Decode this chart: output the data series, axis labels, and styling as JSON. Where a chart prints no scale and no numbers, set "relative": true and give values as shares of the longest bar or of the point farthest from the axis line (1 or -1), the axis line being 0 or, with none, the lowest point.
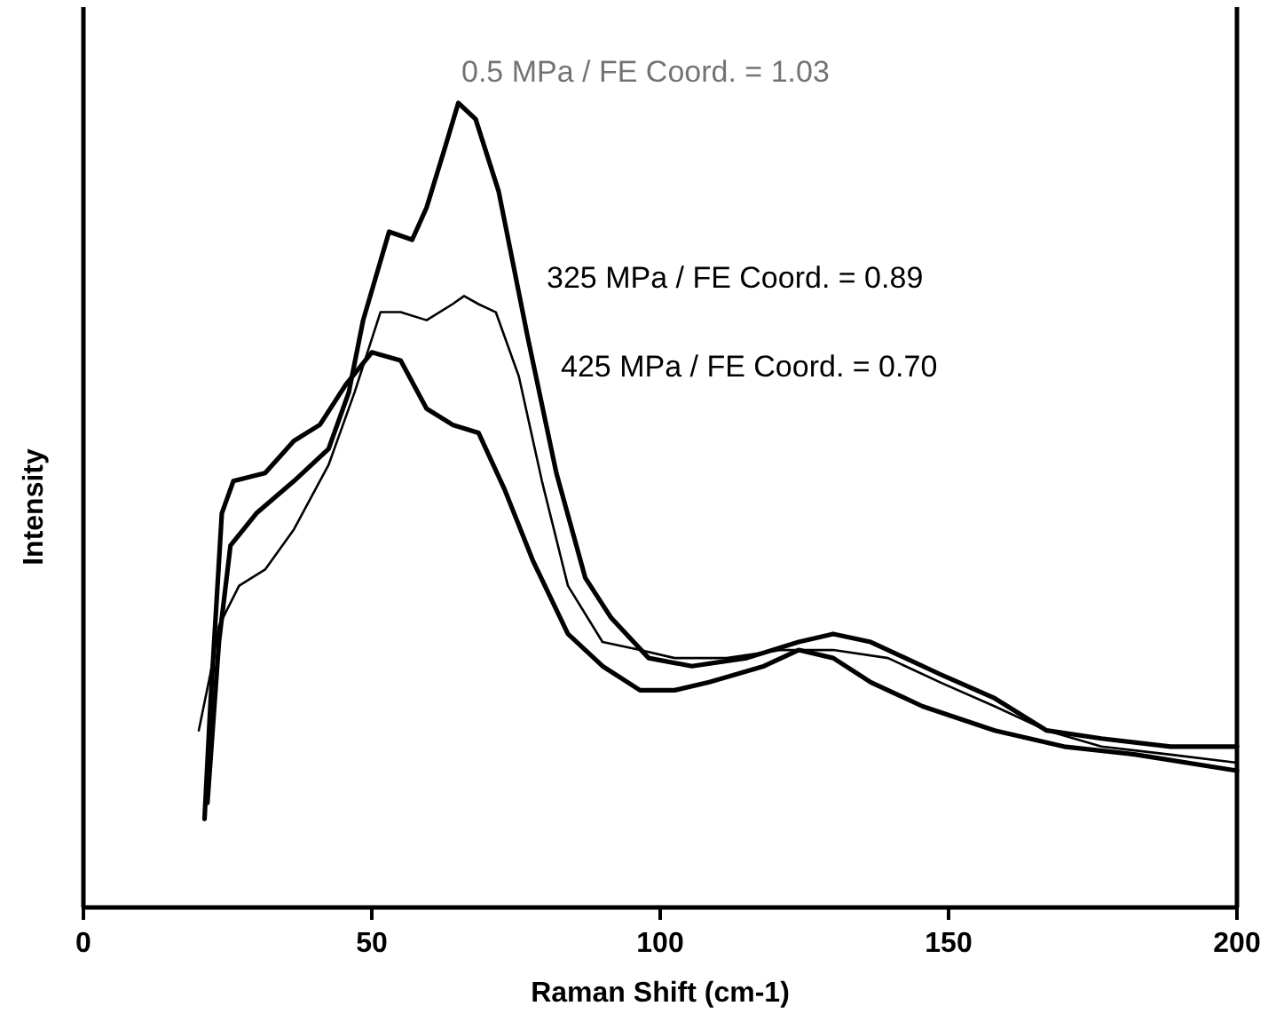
{
  "chart_data": {
    "type": "line",
    "relative": true,
    "xlabel": "Raman Shift (cm-1)",
    "ylabel": "Intensity",
    "xlim": [
      0,
      200
    ],
    "xticks": [
      0,
      50,
      100,
      150,
      200
    ],
    "grid": false,
    "marker": "none",
    "line_style": "solid",
    "annotations": [
      "0.5 MPa / FE Coord. = 1.03",
      "325 MPa / FE Coord. = 0.89",
      "425 MPa / FE Coord. = 0.70"
    ],
    "series": [
      {
        "color": "#000000",
        "x": [
          21.5,
          23.5,
          25.5,
          30,
          36.5,
          42.5,
          46,
          48.5,
          53,
          57,
          59.5,
          62.5,
          65,
          68,
          72,
          77,
          82,
          87,
          91.5,
          98,
          105.5,
          115,
          124,
          130,
          136.5,
          142.5,
          148.5,
          158,
          167,
          176.5,
          188.5,
          200
        ],
        "values": [
          0.13,
          0.33,
          0.45,
          0.49,
          0.53,
          0.57,
          0.64,
          0.73,
          0.84,
          0.83,
          0.87,
          0.94,
          1.0,
          0.98,
          0.89,
          0.71,
          0.54,
          0.41,
          0.36,
          0.31,
          0.3,
          0.31,
          0.33,
          0.34,
          0.33,
          0.31,
          0.29,
          0.26,
          0.22,
          0.21,
          0.2,
          0.2
        ]
      },
      {
        "color": "#000000",
        "x": [
          20,
          22,
          23.5,
          27,
          31.5,
          36.5,
          42.5,
          47,
          51.5,
          55,
          59.5,
          64,
          66,
          68.5,
          71.5,
          75.5,
          79.5,
          84,
          90,
          96.5,
          102.5,
          111.5,
          121,
          130,
          139.5,
          148.5,
          158,
          167,
          176.5,
          188.5,
          200
        ],
        "values": [
          0.22,
          0.29,
          0.35,
          0.4,
          0.42,
          0.47,
          0.55,
          0.64,
          0.74,
          0.74,
          0.73,
          0.75,
          0.76,
          0.75,
          0.74,
          0.66,
          0.53,
          0.4,
          0.33,
          0.32,
          0.31,
          0.31,
          0.32,
          0.32,
          0.31,
          0.28,
          0.25,
          0.22,
          0.2,
          0.19,
          0.18
        ]
      },
      {
        "color": "#000000",
        "x": [
          21,
          22,
          24,
          26,
          31.5,
          36.5,
          41,
          45.5,
          50,
          55,
          59.5,
          64,
          68.5,
          73,
          78,
          84,
          90,
          96.5,
          102.5,
          108.5,
          118,
          124,
          130,
          136.5,
          145.5,
          158,
          170,
          182.5,
          200
        ],
        "values": [
          0.11,
          0.25,
          0.49,
          0.53,
          0.54,
          0.58,
          0.6,
          0.65,
          0.69,
          0.68,
          0.62,
          0.6,
          0.59,
          0.52,
          0.43,
          0.34,
          0.3,
          0.27,
          0.27,
          0.28,
          0.3,
          0.32,
          0.31,
          0.28,
          0.25,
          0.22,
          0.2,
          0.19,
          0.17
        ]
      }
    ]
  }
}
